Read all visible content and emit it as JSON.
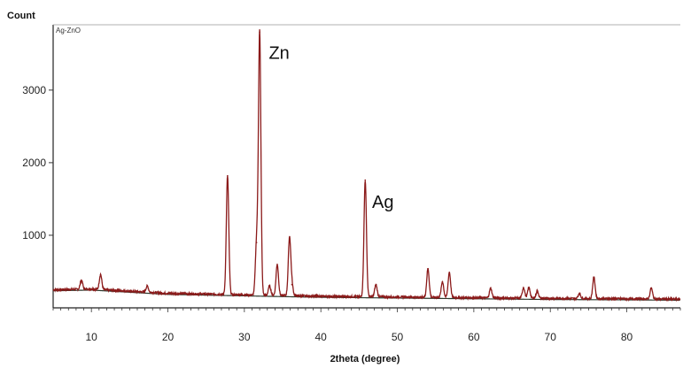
{
  "chart_data": {
    "type": "line",
    "title": "",
    "ylabel": "Count",
    "xlabel": "2theta (degree)",
    "legend": "Ag-ZnO",
    "xlim": [
      5,
      87
    ],
    "ylim": [
      0,
      3900
    ],
    "xticks": [
      10,
      20,
      30,
      40,
      50,
      60,
      70,
      80
    ],
    "yticks": [
      1000,
      2000,
      3000
    ],
    "grid": false,
    "colors": {
      "series": "#8b1a1a",
      "baseline": "#2e3a2e",
      "axis": "#222222"
    },
    "baseline": [
      [
        5,
        250
      ],
      [
        10,
        260
      ],
      [
        20,
        200
      ],
      [
        30,
        180
      ],
      [
        40,
        160
      ],
      [
        50,
        150
      ],
      [
        60,
        140
      ],
      [
        70,
        130
      ],
      [
        80,
        125
      ],
      [
        87,
        120
      ]
    ],
    "peaks": [
      {
        "x": 8.7,
        "y": 380
      },
      {
        "x": 11.2,
        "y": 460
      },
      {
        "x": 17.3,
        "y": 300
      },
      {
        "x": 27.8,
        "y": 1820
      },
      {
        "x": 31.6,
        "y": 900
      },
      {
        "x": 32.0,
        "y": 3800
      },
      {
        "x": 33.3,
        "y": 300
      },
      {
        "x": 34.3,
        "y": 600
      },
      {
        "x": 35.9,
        "y": 960
      },
      {
        "x": 36.2,
        "y": 320
      },
      {
        "x": 45.8,
        "y": 1760
      },
      {
        "x": 47.2,
        "y": 320
      },
      {
        "x": 54.0,
        "y": 540
      },
      {
        "x": 55.9,
        "y": 360
      },
      {
        "x": 56.8,
        "y": 490
      },
      {
        "x": 62.2,
        "y": 270
      },
      {
        "x": 66.5,
        "y": 280
      },
      {
        "x": 67.2,
        "y": 280
      },
      {
        "x": 68.3,
        "y": 230
      },
      {
        "x": 73.8,
        "y": 200
      },
      {
        "x": 75.7,
        "y": 420
      },
      {
        "x": 83.2,
        "y": 270
      }
    ],
    "annotations": [
      {
        "text": "Zn",
        "x": 33.2,
        "y": 3430
      },
      {
        "text": "Ag",
        "x": 46.7,
        "y": 1380
      }
    ]
  }
}
